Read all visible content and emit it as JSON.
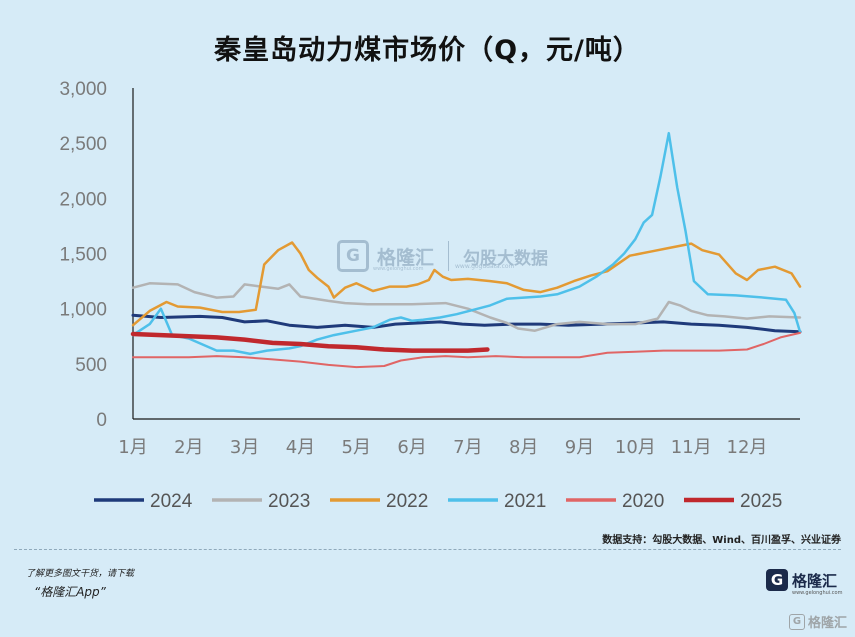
{
  "chart_data": {
    "type": "line",
    "title": "秦皇岛动力煤市场价（Q，元/吨）",
    "xlabel": "",
    "ylabel": "",
    "x_ticks": [
      "1月",
      "2月",
      "3月",
      "4月",
      "5月",
      "6月",
      "7月",
      "8月",
      "9月",
      "10月",
      "11月",
      "12月"
    ],
    "xlim": [
      1,
      12.95
    ],
    "y_ticks": [
      "3,000",
      "2,500",
      "2,000",
      "1,500",
      "1,000",
      "500",
      "0"
    ],
    "ylim": [
      0,
      3000
    ],
    "grid": false,
    "legend_position": "bottom",
    "series": [
      {
        "name": "2024",
        "color": "#1f3a7a",
        "width": 3,
        "points": [
          [
            1,
            940
          ],
          [
            1.5,
            920
          ],
          [
            2.2,
            930
          ],
          [
            2.6,
            920
          ],
          [
            3,
            880
          ],
          [
            3.4,
            890
          ],
          [
            3.8,
            850
          ],
          [
            4.3,
            830
          ],
          [
            4.8,
            850
          ],
          [
            5.3,
            830
          ],
          [
            5.7,
            860
          ],
          [
            6.1,
            870
          ],
          [
            6.5,
            880
          ],
          [
            6.9,
            860
          ],
          [
            7.3,
            850
          ],
          [
            7.8,
            860
          ],
          [
            8.3,
            860
          ],
          [
            8.8,
            850
          ],
          [
            9.4,
            860
          ],
          [
            10,
            870
          ],
          [
            10.5,
            880
          ],
          [
            11,
            860
          ],
          [
            11.5,
            850
          ],
          [
            12,
            830
          ],
          [
            12.5,
            800
          ],
          [
            12.95,
            790
          ]
        ]
      },
      {
        "name": "2023",
        "color": "#b3b3b3",
        "width": 2.5,
        "points": [
          [
            1,
            1190
          ],
          [
            1.3,
            1230
          ],
          [
            1.8,
            1220
          ],
          [
            2.1,
            1150
          ],
          [
            2.5,
            1100
          ],
          [
            2.8,
            1110
          ],
          [
            3,
            1220
          ],
          [
            3.3,
            1200
          ],
          [
            3.6,
            1180
          ],
          [
            3.8,
            1220
          ],
          [
            4,
            1110
          ],
          [
            4.5,
            1070
          ],
          [
            4.8,
            1050
          ],
          [
            5.2,
            1040
          ],
          [
            6,
            1040
          ],
          [
            6.6,
            1050
          ],
          [
            7,
            1000
          ],
          [
            7.4,
            920
          ],
          [
            7.7,
            870
          ],
          [
            7.9,
            820
          ],
          [
            8.2,
            800
          ],
          [
            8.6,
            860
          ],
          [
            9,
            880
          ],
          [
            9.5,
            860
          ],
          [
            10,
            860
          ],
          [
            10.4,
            910
          ],
          [
            10.6,
            1060
          ],
          [
            10.8,
            1030
          ],
          [
            11,
            980
          ],
          [
            11.3,
            940
          ],
          [
            11.6,
            930
          ],
          [
            12,
            910
          ],
          [
            12.4,
            930
          ],
          [
            12.95,
            920
          ]
        ]
      },
      {
        "name": "2022",
        "color": "#e39a33",
        "width": 2.5,
        "points": [
          [
            1,
            850
          ],
          [
            1.3,
            980
          ],
          [
            1.6,
            1060
          ],
          [
            1.8,
            1020
          ],
          [
            2.2,
            1010
          ],
          [
            2.6,
            970
          ],
          [
            2.9,
            970
          ],
          [
            3.2,
            990
          ],
          [
            3.35,
            1400
          ],
          [
            3.6,
            1530
          ],
          [
            3.85,
            1600
          ],
          [
            4,
            1500
          ],
          [
            4.15,
            1350
          ],
          [
            4.3,
            1280
          ],
          [
            4.5,
            1200
          ],
          [
            4.6,
            1100
          ],
          [
            4.8,
            1190
          ],
          [
            5,
            1230
          ],
          [
            5.3,
            1160
          ],
          [
            5.6,
            1200
          ],
          [
            5.9,
            1200
          ],
          [
            6.1,
            1220
          ],
          [
            6.3,
            1260
          ],
          [
            6.4,
            1350
          ],
          [
            6.55,
            1290
          ],
          [
            6.7,
            1260
          ],
          [
            7,
            1270
          ],
          [
            7.4,
            1250
          ],
          [
            7.7,
            1230
          ],
          [
            8,
            1170
          ],
          [
            8.3,
            1150
          ],
          [
            8.6,
            1190
          ],
          [
            8.9,
            1250
          ],
          [
            9.2,
            1300
          ],
          [
            9.5,
            1340
          ],
          [
            9.9,
            1480
          ],
          [
            10.3,
            1520
          ],
          [
            10.6,
            1550
          ],
          [
            11,
            1590
          ],
          [
            11.2,
            1530
          ],
          [
            11.5,
            1490
          ],
          [
            11.8,
            1320
          ],
          [
            12,
            1260
          ],
          [
            12.2,
            1350
          ],
          [
            12.5,
            1380
          ],
          [
            12.8,
            1320
          ],
          [
            12.95,
            1200
          ]
        ]
      },
      {
        "name": "2021",
        "color": "#4ec0ea",
        "width": 2.5,
        "points": [
          [
            1,
            760
          ],
          [
            1.3,
            860
          ],
          [
            1.5,
            1000
          ],
          [
            1.7,
            760
          ],
          [
            2,
            730
          ],
          [
            2.5,
            620
          ],
          [
            2.8,
            620
          ],
          [
            3.1,
            590
          ],
          [
            3.4,
            620
          ],
          [
            3.8,
            640
          ],
          [
            4,
            660
          ],
          [
            4.3,
            720
          ],
          [
            4.6,
            760
          ],
          [
            5,
            800
          ],
          [
            5.3,
            830
          ],
          [
            5.6,
            900
          ],
          [
            5.8,
            920
          ],
          [
            6,
            890
          ],
          [
            6.2,
            900
          ],
          [
            6.5,
            920
          ],
          [
            6.8,
            950
          ],
          [
            7.1,
            990
          ],
          [
            7.4,
            1030
          ],
          [
            7.7,
            1090
          ],
          [
            8,
            1100
          ],
          [
            8.3,
            1110
          ],
          [
            8.6,
            1130
          ],
          [
            9,
            1200
          ],
          [
            9.3,
            1290
          ],
          [
            9.6,
            1400
          ],
          [
            9.8,
            1500
          ],
          [
            10,
            1630
          ],
          [
            10.15,
            1780
          ],
          [
            10.3,
            1850
          ],
          [
            10.45,
            2200
          ],
          [
            10.6,
            2590
          ],
          [
            10.75,
            2100
          ],
          [
            10.9,
            1700
          ],
          [
            11.05,
            1250
          ],
          [
            11.3,
            1130
          ],
          [
            11.8,
            1120
          ],
          [
            12.3,
            1100
          ],
          [
            12.7,
            1080
          ],
          [
            12.85,
            960
          ],
          [
            12.95,
            790
          ]
        ]
      },
      {
        "name": "2020",
        "color": "#e06565",
        "width": 2,
        "points": [
          [
            1,
            560
          ],
          [
            1.5,
            560
          ],
          [
            2,
            560
          ],
          [
            2.5,
            570
          ],
          [
            3,
            560
          ],
          [
            3.5,
            540
          ],
          [
            4,
            520
          ],
          [
            4.5,
            490
          ],
          [
            5,
            470
          ],
          [
            5.5,
            480
          ],
          [
            5.8,
            530
          ],
          [
            6.2,
            560
          ],
          [
            6.6,
            570
          ],
          [
            7,
            560
          ],
          [
            7.5,
            570
          ],
          [
            8,
            560
          ],
          [
            8.5,
            560
          ],
          [
            9,
            560
          ],
          [
            9.5,
            600
          ],
          [
            10,
            610
          ],
          [
            10.5,
            620
          ],
          [
            11,
            620
          ],
          [
            11.5,
            620
          ],
          [
            12,
            630
          ],
          [
            12.3,
            680
          ],
          [
            12.6,
            740
          ],
          [
            12.95,
            780
          ]
        ]
      },
      {
        "name": "2025",
        "color": "#c0282d",
        "width": 4.5,
        "points": [
          [
            1,
            770
          ],
          [
            1.5,
            760
          ],
          [
            2,
            750
          ],
          [
            2.5,
            740
          ],
          [
            3,
            720
          ],
          [
            3.5,
            690
          ],
          [
            4,
            680
          ],
          [
            4.5,
            660
          ],
          [
            5,
            650
          ],
          [
            5.5,
            630
          ],
          [
            6,
            620
          ],
          [
            6.5,
            620
          ],
          [
            7,
            620
          ],
          [
            7.35,
            630
          ]
        ]
      }
    ]
  },
  "source_note": "数据支持：勾股大数据、Wind、百川盈孚、兴业证券",
  "footer": {
    "line1": "了解更多图文干货，请下载",
    "line2": "“格隆汇App”"
  },
  "brand": {
    "logo_glyph": "G",
    "name": "格隆汇",
    "domain": "www.gelonghui.com"
  },
  "watermark": {
    "glyph": "G",
    "name": "格隆汇",
    "name_sub": "www.gelonghui.com",
    "partner": "勾股大数据",
    "partner_sub": "www.gogudata.com"
  },
  "colors": {
    "background": "#d6ebf7",
    "axis": "#1a1a1a",
    "tick_label": "#7a7a7a"
  }
}
